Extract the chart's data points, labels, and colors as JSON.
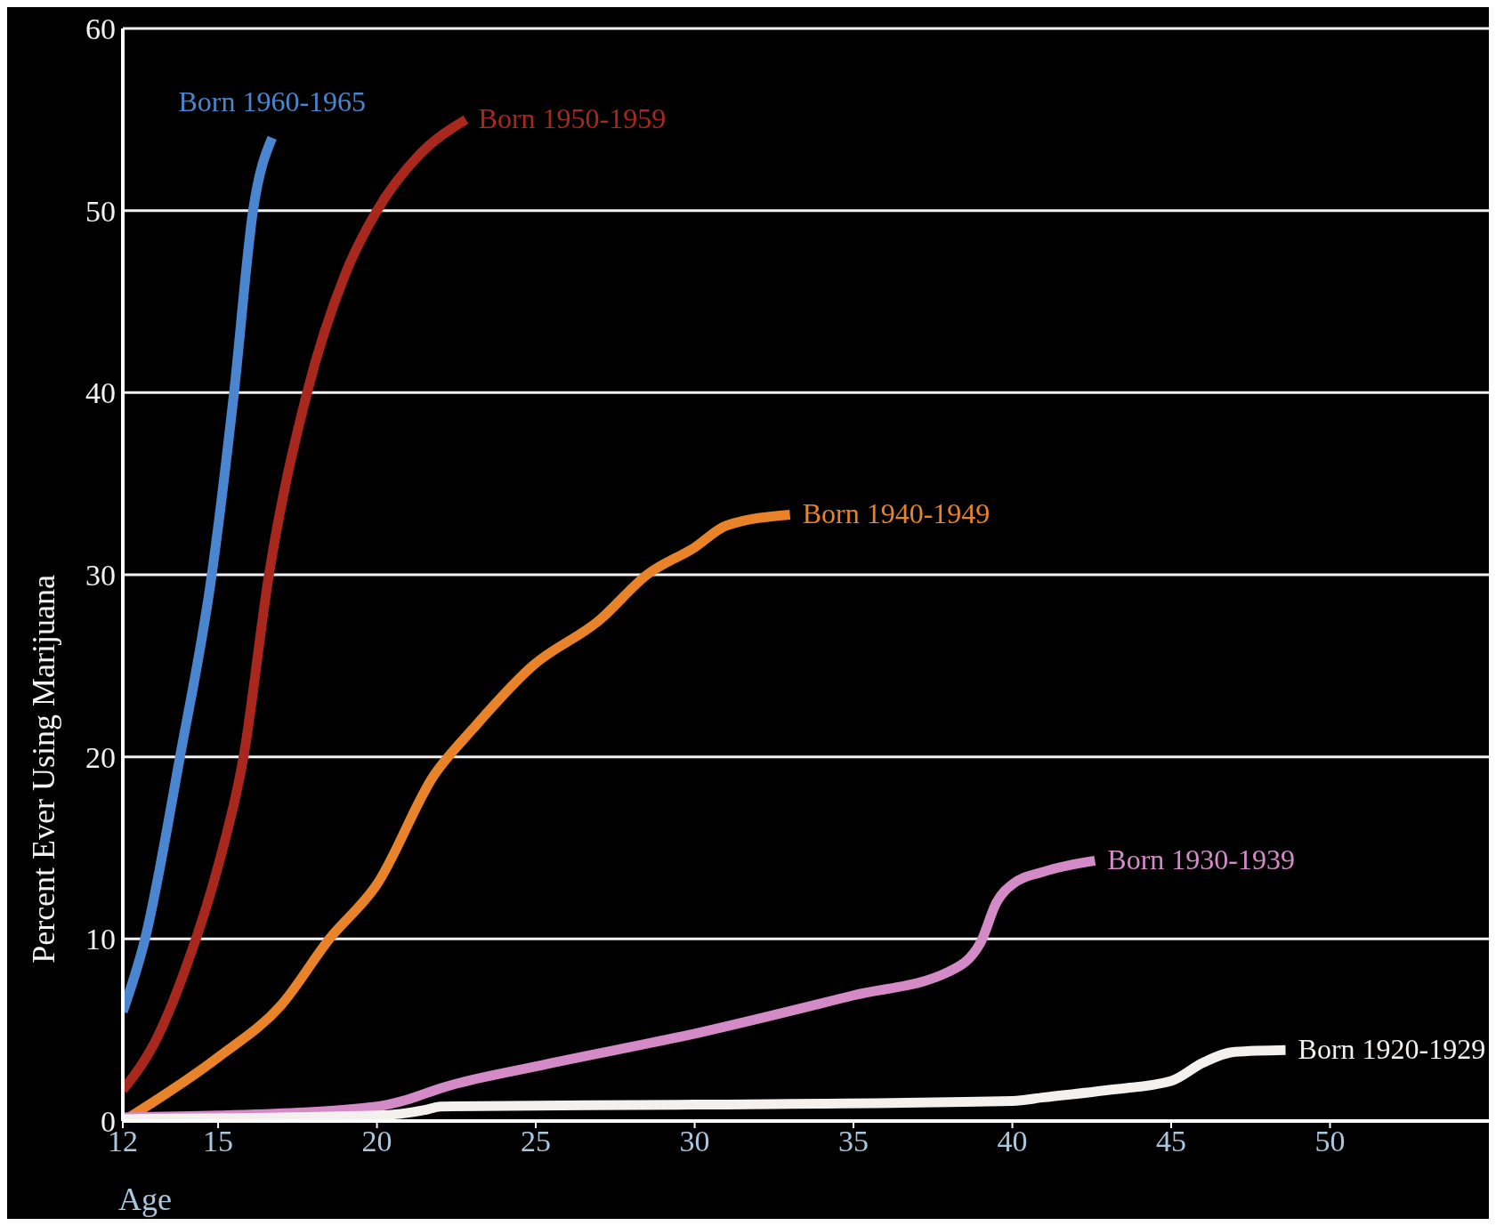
{
  "chart_data": {
    "type": "line",
    "xlabel": "Age",
    "ylabel": "Percent Ever Using Marijuana",
    "xlim": [
      12,
      55
    ],
    "xticks": [
      12,
      15,
      20,
      25,
      30,
      35,
      40,
      45,
      50
    ],
    "ylim": [
      0,
      60
    ],
    "yticks": [
      0,
      10,
      20,
      30,
      40,
      50,
      60
    ],
    "grid": "y",
    "legend": false,
    "marker": "none",
    "line_style": "solid",
    "series": [
      {
        "name": "Born 1960-1965",
        "color": "#4a86d0",
        "x": [
          12,
          12.7,
          13.8,
          14.8,
          15.5,
          16.1,
          16.7
        ],
        "values": [
          6,
          10,
          20,
          30,
          40,
          50,
          54
        ]
      },
      {
        "name": "Born 1950-1959",
        "color": "#a8281e",
        "x": [
          12,
          13,
          14,
          15,
          15.8,
          16.6,
          17.8,
          19,
          20,
          21.3,
          22.8
        ],
        "values": [
          1.7,
          4.3,
          8.5,
          14,
          20,
          30,
          40,
          46.5,
          50,
          53,
          55
        ]
      },
      {
        "name": "Born 1940-1949",
        "color": "#e8832a",
        "x": [
          12.2,
          15,
          17,
          18.5,
          20,
          21.8,
          23,
          24.9,
          27,
          28.5,
          30,
          31,
          33
        ],
        "values": [
          0.2,
          3.5,
          6.4,
          10,
          13,
          19,
          21.5,
          25,
          27.5,
          30,
          31.5,
          32.7,
          33.3
        ]
      },
      {
        "name": "Born 1930-1939",
        "color": "#d58ac8",
        "x": [
          12,
          15,
          20,
          21,
          22,
          25,
          30,
          35,
          38,
          39,
          39.5,
          40,
          41,
          42.6
        ],
        "values": [
          0.2,
          0.3,
          0.8,
          1.2,
          1.8,
          3,
          4.8,
          6.9,
          8.2,
          9.8,
          12,
          13,
          13.7,
          14.3
        ]
      },
      {
        "name": "Born 1920-1929",
        "color": "#f4f0ee",
        "x": [
          12,
          20,
          21.5,
          22,
          30,
          40,
          41,
          43,
          45,
          46,
          47,
          48.6
        ],
        "values": [
          0.1,
          0.3,
          0.6,
          0.8,
          0.9,
          1.1,
          1.3,
          1.7,
          2.2,
          3.2,
          3.8,
          3.9
        ]
      }
    ]
  }
}
